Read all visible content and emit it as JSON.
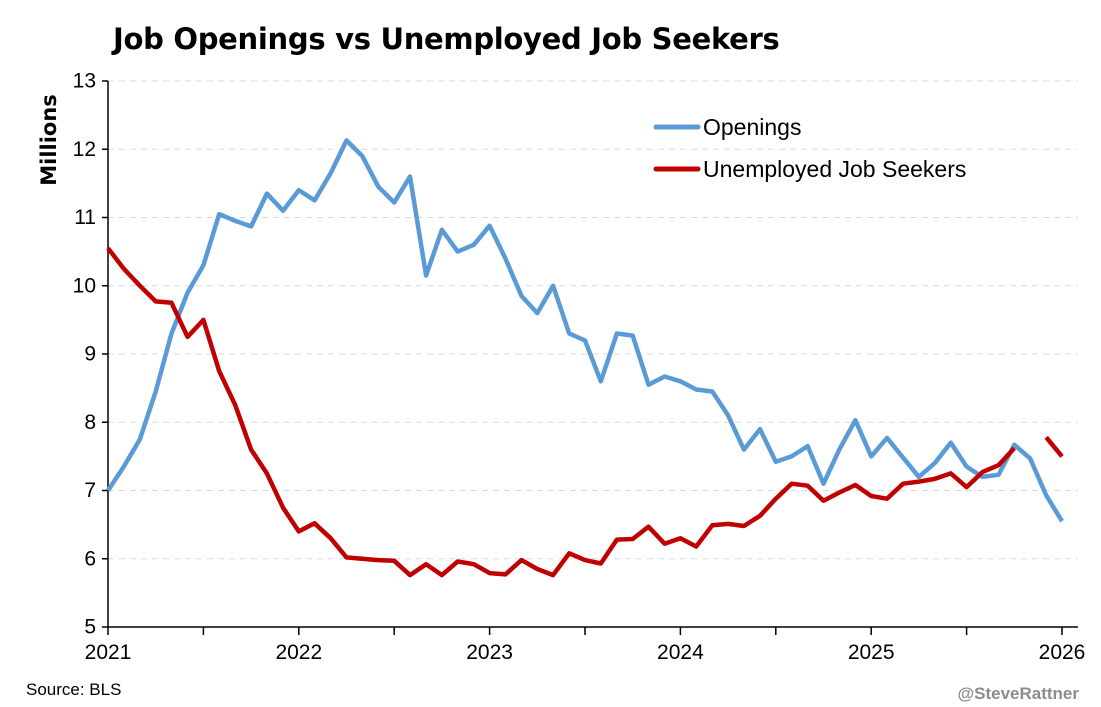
{
  "chart_data": {
    "type": "line",
    "title": "Job Openings vs Unemployed Job Seekers",
    "ylabel": "Millions",
    "xlabel": "",
    "ylim": [
      5,
      13
    ],
    "yticks": [
      "5",
      "6",
      "7",
      "8",
      "9",
      "10",
      "11",
      "12",
      "13"
    ],
    "xlim": [
      2021,
      2026
    ],
    "xticks": [
      "2021",
      "2022",
      "2023",
      "2024",
      "2025",
      "2026"
    ],
    "grid": "horizontal dashed",
    "legend_position": "top-right",
    "series": [
      {
        "name": "Openings",
        "color": "#5b9bd5",
        "points": [
          [
            2021.0,
            7.0
          ],
          [
            2021.083,
            7.35
          ],
          [
            2021.167,
            7.75
          ],
          [
            2021.25,
            8.45
          ],
          [
            2021.333,
            9.3
          ],
          [
            2021.417,
            9.9
          ],
          [
            2021.5,
            10.3
          ],
          [
            2021.583,
            11.05
          ],
          [
            2021.667,
            10.95
          ],
          [
            2021.75,
            10.87
          ],
          [
            2021.833,
            11.35
          ],
          [
            2021.917,
            11.1
          ],
          [
            2022.0,
            11.4
          ],
          [
            2022.083,
            11.25
          ],
          [
            2022.167,
            11.65
          ],
          [
            2022.25,
            12.13
          ],
          [
            2022.333,
            11.9
          ],
          [
            2022.417,
            11.45
          ],
          [
            2022.5,
            11.22
          ],
          [
            2022.583,
            11.6
          ],
          [
            2022.667,
            10.15
          ],
          [
            2022.75,
            10.82
          ],
          [
            2022.833,
            10.5
          ],
          [
            2022.917,
            10.6
          ],
          [
            2023.0,
            10.88
          ],
          [
            2023.083,
            10.4
          ],
          [
            2023.167,
            9.85
          ],
          [
            2023.25,
            9.6
          ],
          [
            2023.333,
            10.0
          ],
          [
            2023.417,
            9.3
          ],
          [
            2023.5,
            9.2
          ],
          [
            2023.583,
            8.6
          ],
          [
            2023.667,
            9.3
          ],
          [
            2023.75,
            9.27
          ],
          [
            2023.833,
            8.55
          ],
          [
            2023.917,
            8.67
          ],
          [
            2024.0,
            8.6
          ],
          [
            2024.083,
            8.48
          ],
          [
            2024.167,
            8.45
          ],
          [
            2024.25,
            8.1
          ],
          [
            2024.333,
            7.6
          ],
          [
            2024.417,
            7.9
          ],
          [
            2024.5,
            7.42
          ],
          [
            2024.583,
            7.5
          ],
          [
            2024.667,
            7.65
          ],
          [
            2024.75,
            7.1
          ],
          [
            2024.833,
            7.6
          ],
          [
            2024.917,
            8.03
          ],
          [
            2025.0,
            7.5
          ],
          [
            2025.083,
            7.77
          ],
          [
            2025.167,
            7.48
          ],
          [
            2025.25,
            7.2
          ],
          [
            2025.333,
            7.4
          ],
          [
            2025.417,
            7.7
          ],
          [
            2025.5,
            7.35
          ],
          [
            2025.583,
            7.2
          ],
          [
            2025.667,
            7.23
          ],
          [
            2025.75,
            7.67
          ],
          [
            2025.833,
            7.47
          ],
          [
            2025.917,
            6.93
          ],
          [
            2026.0,
            6.55
          ]
        ]
      },
      {
        "name": "Unemployed Job Seekers",
        "color": "#c00000",
        "points": [
          [
            2021.0,
            10.55
          ],
          [
            2021.083,
            10.25
          ],
          [
            2021.167,
            10.0
          ],
          [
            2021.25,
            9.77
          ],
          [
            2021.333,
            9.75
          ],
          [
            2021.417,
            9.25
          ],
          [
            2021.5,
            9.5
          ],
          [
            2021.583,
            8.75
          ],
          [
            2021.667,
            8.25
          ],
          [
            2021.75,
            7.6
          ],
          [
            2021.833,
            7.25
          ],
          [
            2021.917,
            6.75
          ],
          [
            2022.0,
            6.4
          ],
          [
            2022.083,
            6.52
          ],
          [
            2022.167,
            6.3
          ],
          [
            2022.25,
            6.02
          ],
          [
            2022.333,
            6.0
          ],
          [
            2022.417,
            5.98
          ],
          [
            2022.5,
            5.97
          ],
          [
            2022.583,
            5.76
          ],
          [
            2022.667,
            5.92
          ],
          [
            2022.75,
            5.76
          ],
          [
            2022.833,
            5.96
          ],
          [
            2022.917,
            5.92
          ],
          [
            2023.0,
            5.79
          ],
          [
            2023.083,
            5.77
          ],
          [
            2023.167,
            5.98
          ],
          [
            2023.25,
            5.85
          ],
          [
            2023.333,
            5.76
          ],
          [
            2023.417,
            6.08
          ],
          [
            2023.5,
            5.98
          ],
          [
            2023.583,
            5.93
          ],
          [
            2023.667,
            6.28
          ],
          [
            2023.75,
            6.29
          ],
          [
            2023.833,
            6.47
          ],
          [
            2023.917,
            6.22
          ],
          [
            2024.0,
            6.3
          ],
          [
            2024.083,
            6.18
          ],
          [
            2024.167,
            6.49
          ],
          [
            2024.25,
            6.51
          ],
          [
            2024.333,
            6.48
          ],
          [
            2024.417,
            6.63
          ],
          [
            2024.5,
            6.88
          ],
          [
            2024.583,
            7.1
          ],
          [
            2024.667,
            7.07
          ],
          [
            2024.75,
            6.85
          ],
          [
            2024.833,
            6.97
          ],
          [
            2024.917,
            7.08
          ],
          [
            2025.0,
            6.92
          ],
          [
            2025.083,
            6.88
          ],
          [
            2025.167,
            7.1
          ],
          [
            2025.25,
            7.13
          ],
          [
            2025.333,
            7.17
          ],
          [
            2025.417,
            7.25
          ],
          [
            2025.5,
            7.05
          ],
          [
            2025.583,
            7.27
          ],
          [
            2025.667,
            7.37
          ],
          [
            2025.75,
            7.62
          ],
          null,
          [
            2025.917,
            7.78
          ],
          [
            2026.0,
            7.5
          ]
        ]
      }
    ]
  },
  "source": "Source: BLS",
  "credit": "@SteveRattner"
}
